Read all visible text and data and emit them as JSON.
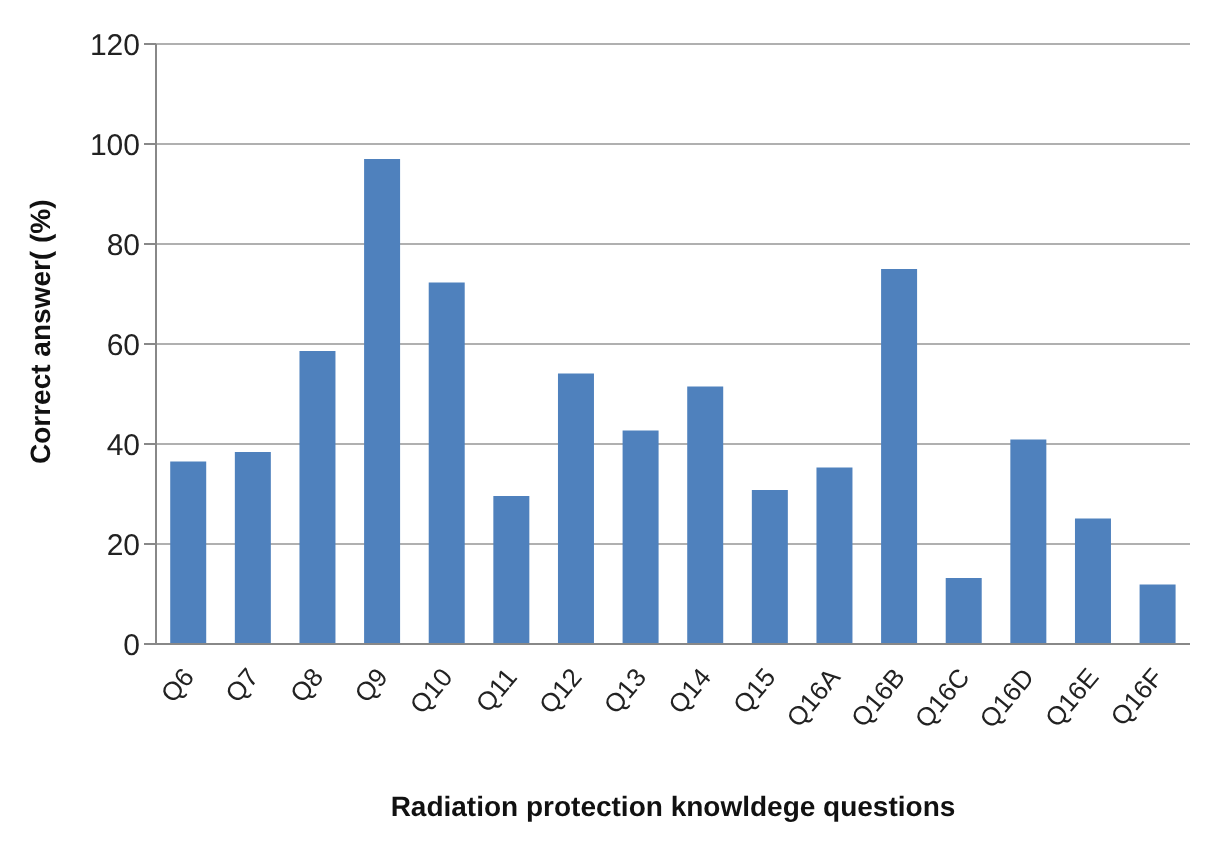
{
  "chart_data": {
    "type": "bar",
    "xlabel": "Radiation protection knowldege questions",
    "ylabel": "Correct answer( (%)",
    "categories": [
      "Q6",
      "Q7",
      "Q8",
      "Q9",
      "Q10",
      "Q11",
      "Q12",
      "Q13",
      "Q14",
      "Q15",
      "Q16A",
      "Q16B",
      "Q16C",
      "Q16D",
      "Q16E",
      "Q16F"
    ],
    "values": [
      36.5,
      38.4,
      58.6,
      97,
      72.3,
      29.6,
      54.1,
      42.7,
      51.5,
      30.8,
      35.3,
      75,
      13.2,
      40.9,
      25.1,
      11.9
    ],
    "color": "#4f81bd",
    "ylim": [
      0,
      120
    ],
    "yticks": [
      0,
      20,
      40,
      60,
      80,
      100,
      120
    ],
    "grid": "y"
  }
}
